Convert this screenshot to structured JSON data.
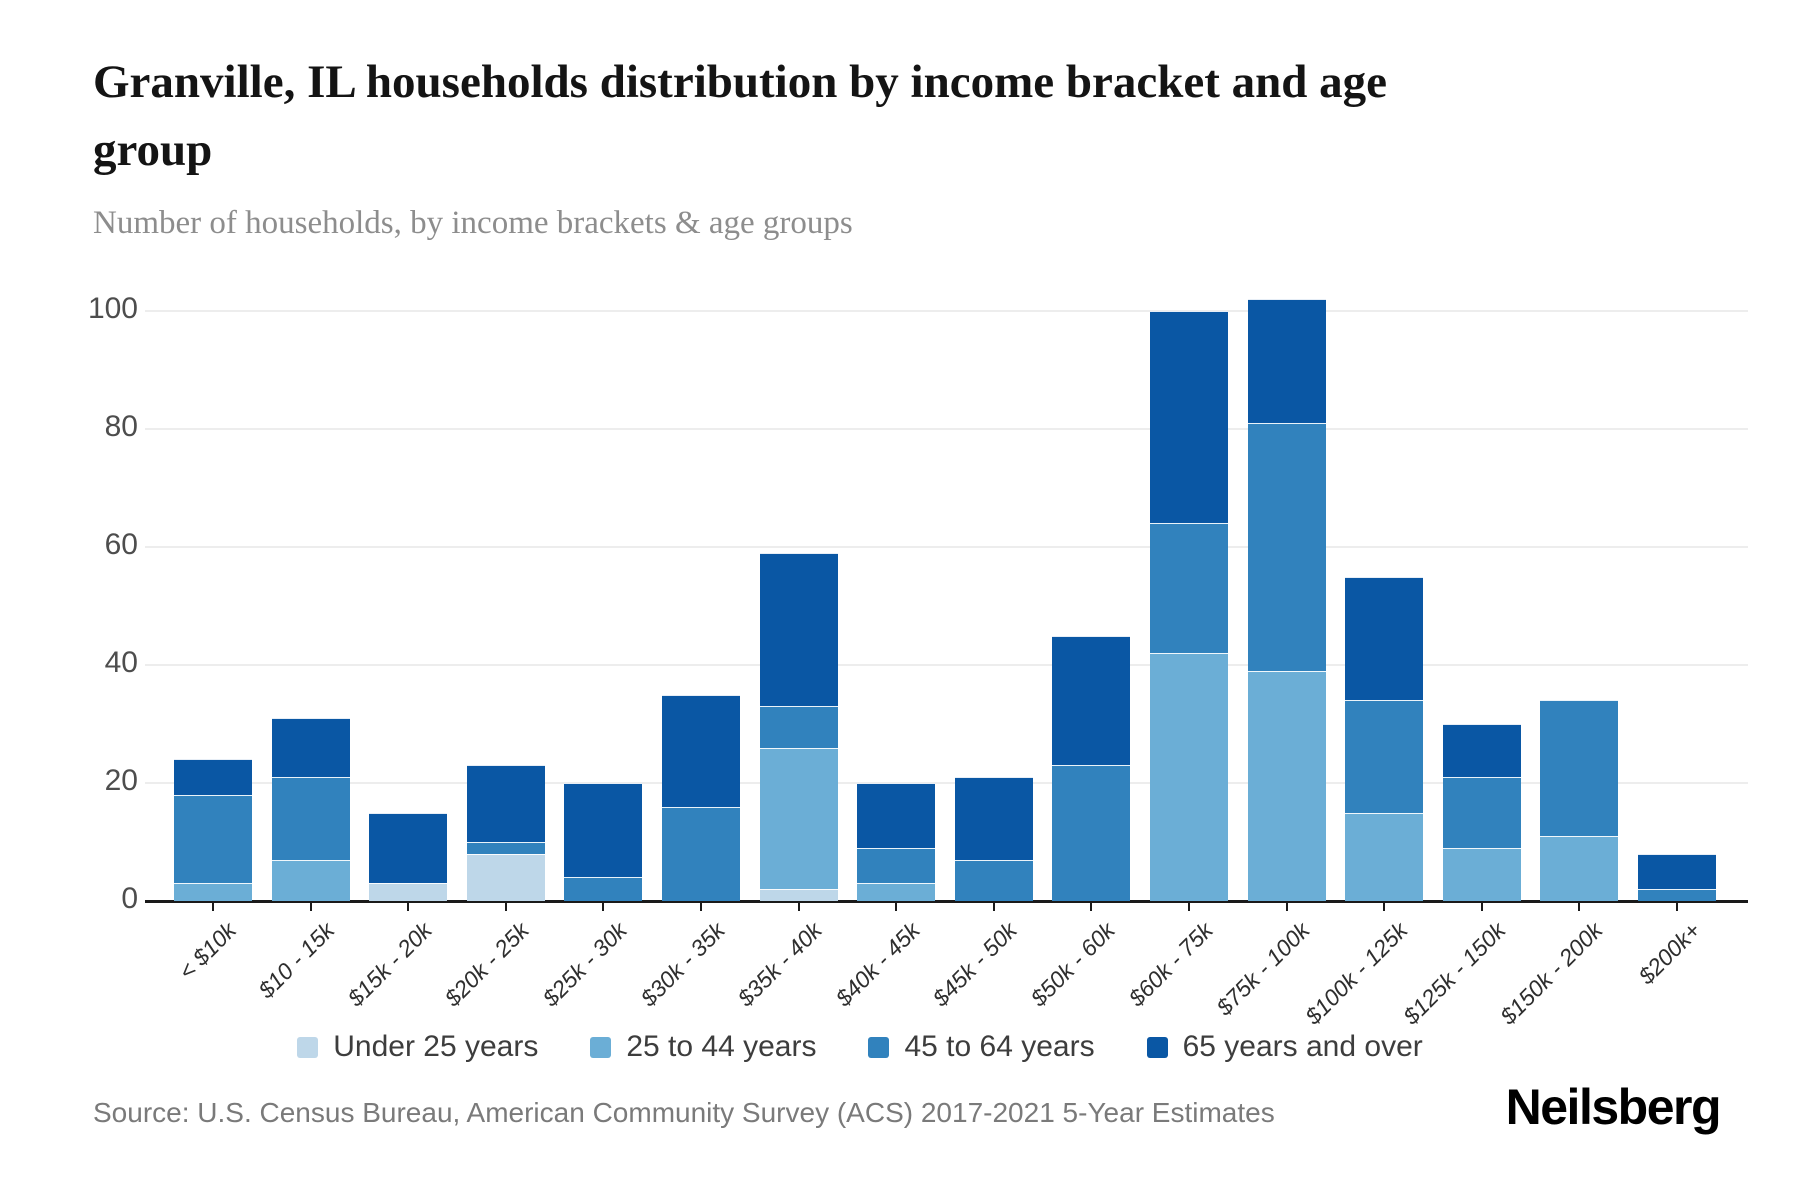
{
  "title": "Granville, IL households distribution by income bracket and age group",
  "subtitle": "Number of households, by income brackets & age groups",
  "source": "Source: U.S. Census Bureau, American Community Survey (ACS) 2017-2021 5-Year Estimates",
  "logo": "Neilsberg",
  "chart_data": {
    "type": "bar",
    "stacked": true,
    "title": "Granville, IL households distribution by income bracket and age group",
    "subtitle": "Number of households, by income brackets & age groups",
    "xlabel": "",
    "ylabel": "Number of households",
    "ylim": [
      0,
      100
    ],
    "yticks": [
      0,
      20,
      40,
      60,
      80,
      100
    ],
    "grid": true,
    "legend_position": "bottom",
    "categories": [
      "< $10k",
      "$10 - 15k",
      "$15k - 20k",
      "$20k - 25k",
      "$25k - 30k",
      "$30k - 35k",
      "$35k - 40k",
      "$40k - 45k",
      "$45k - 50k",
      "$50k - 60k",
      "$60k - 75k",
      "$75k - 100k",
      "$100k - 125k",
      "$125k - 150k",
      "$150k - 200k",
      "$200k+"
    ],
    "series": [
      {
        "name": "Under 25 years",
        "color": "#bed7e9",
        "values": [
          0,
          0,
          3,
          8,
          0,
          0,
          2,
          0,
          0,
          0,
          0,
          0,
          0,
          0,
          0,
          0
        ]
      },
      {
        "name": "25 to 44 years",
        "color": "#6baed6",
        "values": [
          3,
          7,
          0,
          0,
          0,
          0,
          24,
          3,
          0,
          0,
          42,
          39,
          15,
          9,
          11,
          0
        ]
      },
      {
        "name": "45 to 64 years",
        "color": "#3182bd",
        "values": [
          15,
          14,
          0,
          2,
          4,
          16,
          7,
          6,
          7,
          23,
          22,
          42,
          19,
          12,
          23,
          2
        ]
      },
      {
        "name": "65 years and over",
        "color": "#0a57a4",
        "values": [
          6,
          10,
          12,
          13,
          16,
          19,
          26,
          11,
          14,
          22,
          36,
          21,
          21,
          9,
          0,
          6
        ]
      }
    ],
    "totals": [
      24,
      31,
      15,
      23,
      20,
      35,
      59,
      20,
      21,
      45,
      100,
      102,
      55,
      30,
      34,
      8
    ]
  }
}
